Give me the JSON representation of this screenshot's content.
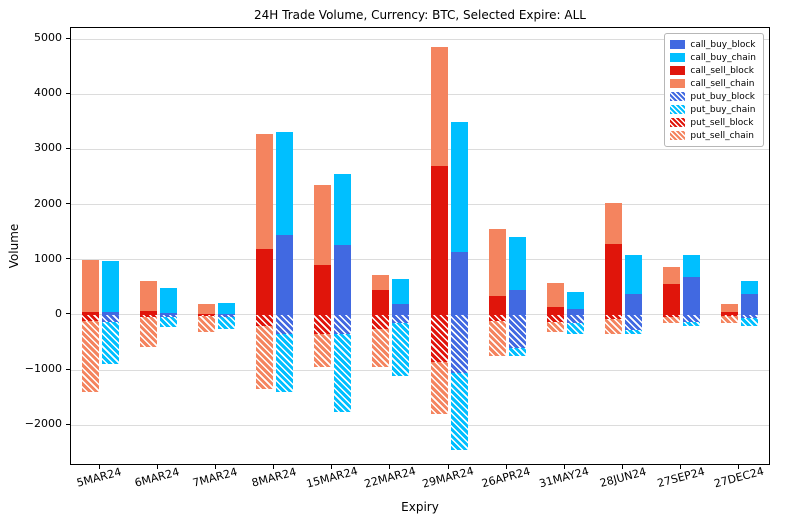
{
  "figure": {
    "background": "#ffffff"
  },
  "chart_data": {
    "type": "bar",
    "stacked": true,
    "title": "24H Trade Volume, Currency: BTC, Selected Expire: ALL",
    "xlabel": "Expiry",
    "ylabel": "Volume",
    "ylim": [
      -2700,
      5200
    ],
    "yticks": [
      -2000,
      -1000,
      0,
      1000,
      2000,
      3000,
      4000,
      5000
    ],
    "grid": "horizontal",
    "legend_position": "upper right",
    "categories": [
      "5MAR24",
      "6MAR24",
      "7MAR24",
      "8MAR24",
      "15MAR24",
      "22MAR24",
      "29MAR24",
      "26APR24",
      "31MAY24",
      "28JUN24",
      "27SEP24",
      "27DEC24"
    ],
    "series": [
      {
        "name": "call_buy_block",
        "color": "#4169e1",
        "hatch": false,
        "bar": "buy",
        "values": [
          60,
          40,
          15,
          1450,
          1270,
          200,
          1150,
          450,
          100,
          380,
          680,
          380
        ]
      },
      {
        "name": "call_buy_chain",
        "color": "#00bfff",
        "hatch": false,
        "bar": "buy",
        "values": [
          910,
          440,
          200,
          1870,
          1280,
          450,
          2350,
          970,
          320,
          700,
          410,
          240
        ]
      },
      {
        "name": "call_sell_block",
        "color": "#e0150b",
        "hatch": false,
        "bar": "sell",
        "values": [
          60,
          70,
          20,
          1200,
          900,
          450,
          2700,
          350,
          150,
          1280,
          560,
          50
        ]
      },
      {
        "name": "call_sell_chain",
        "color": "#f4845f",
        "hatch": false,
        "bar": "sell",
        "values": [
          940,
          550,
          180,
          2080,
          1450,
          270,
          2150,
          1200,
          430,
          750,
          310,
          150
        ]
      },
      {
        "name": "put_buy_block",
        "color": "#4169e1",
        "hatch": true,
        "bar": "buy",
        "values": [
          -120,
          -40,
          -30,
          -350,
          -350,
          -150,
          -1050,
          -600,
          -150,
          -280,
          -120,
          -60
        ]
      },
      {
        "name": "put_buy_chain",
        "color": "#00bfff",
        "hatch": true,
        "bar": "buy",
        "values": [
          -760,
          -180,
          -220,
          -1050,
          -1400,
          -950,
          -1400,
          -150,
          -200,
          -70,
          -80,
          -140
        ]
      },
      {
        "name": "put_sell_block",
        "color": "#e0150b",
        "hatch": true,
        "bar": "sell",
        "values": [
          -100,
          -30,
          -20,
          -200,
          -350,
          -250,
          -850,
          -100,
          -120,
          -80,
          -40,
          -20
        ]
      },
      {
        "name": "put_sell_chain",
        "color": "#f4845f",
        "hatch": true,
        "bar": "sell",
        "values": [
          -1300,
          -550,
          -280,
          -1150,
          -600,
          -700,
          -950,
          -650,
          -180,
          -270,
          -110,
          -130
        ]
      }
    ]
  }
}
